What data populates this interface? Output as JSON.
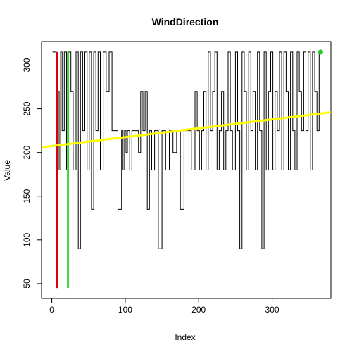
{
  "chart_data": {
    "type": "line",
    "title": "WindDirection",
    "xlabel": "Index",
    "ylabel": "Value",
    "xlim": [
      -14,
      380
    ],
    "ylim": [
      33,
      327
    ],
    "x_ticks": [
      0,
      100,
      200,
      300
    ],
    "y_ticks": [
      50,
      100,
      150,
      200,
      250,
      300
    ],
    "grid": false,
    "series": [
      {
        "type": "step",
        "color": "#000000",
        "x": [
          1,
          6,
          7,
          10,
          12,
          14,
          17,
          20,
          22,
          26,
          29,
          33,
          36,
          39,
          42,
          45,
          48,
          51,
          54,
          57,
          60,
          63,
          66,
          70,
          74,
          78,
          82,
          86,
          88,
          90,
          95,
          97,
          99,
          101,
          103,
          106,
          109,
          112,
          115,
          118,
          121,
          124,
          127,
          130,
          133,
          136,
          140,
          145,
          150,
          155,
          160,
          165,
          170,
          175,
          180,
          185,
          190,
          195,
          198,
          201,
          204,
          207,
          210,
          213,
          216,
          219,
          222,
          225,
          228,
          231,
          234,
          237,
          240,
          243,
          246,
          250,
          253,
          256,
          259,
          262,
          265,
          268,
          271,
          274,
          277,
          280,
          283,
          286,
          289,
          292,
          295,
          298,
          301,
          304,
          307,
          310,
          313,
          316,
          319,
          322,
          325,
          328,
          331,
          334,
          337,
          340,
          343,
          346,
          349,
          352,
          355,
          358,
          361,
          364,
          366
        ],
        "y": [
          315,
          180,
          270,
          180,
          315,
          225,
          315,
          180,
          315,
          270,
          180,
          315,
          90,
          315,
          225,
          315,
          180,
          315,
          135,
          315,
          225,
          315,
          180,
          315,
          270,
          315,
          225,
          225,
          225,
          135,
          225,
          180,
          225,
          200,
          225,
          180,
          225,
          225,
          225,
          200,
          270,
          225,
          270,
          135,
          225,
          180,
          225,
          90,
          225,
          180,
          225,
          200,
          225,
          135,
          225,
          225,
          180,
          270,
          225,
          180,
          225,
          270,
          180,
          315,
          225,
          270,
          315,
          180,
          225,
          270,
          180,
          225,
          315,
          225,
          180,
          315,
          225,
          90,
          315,
          270,
          180,
          315,
          225,
          270,
          180,
          315,
          225,
          90,
          315,
          180,
          270,
          315,
          180,
          270,
          225,
          315,
          180,
          315,
          270,
          180,
          315,
          225,
          180,
          315,
          270,
          225,
          315,
          225,
          315,
          180,
          315,
          270,
          225,
          315,
          315
        ]
      },
      {
        "type": "vline",
        "color": "#00cc00",
        "x": 22,
        "y": [
          45,
          315
        ]
      },
      {
        "type": "vline",
        "color": "#dd0000",
        "x": 7,
        "y": [
          45,
          315
        ]
      },
      {
        "type": "trend",
        "color": "#ffff00",
        "x": [
          -14,
          380
        ],
        "y": [
          206,
          246
        ]
      },
      {
        "type": "point",
        "color": "#22cc22",
        "x": 366,
        "y": 315
      }
    ]
  }
}
